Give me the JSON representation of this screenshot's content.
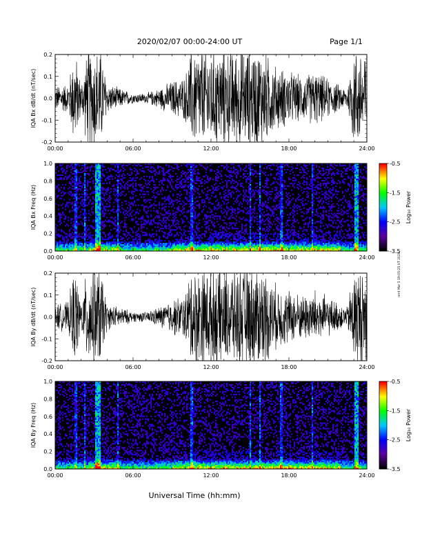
{
  "header": {
    "date_range": "2020/02/07  00:00-24:00 UT",
    "page": "Page 1/1"
  },
  "side_note": "nmt Mar 5 19:05:25 UT 2020",
  "x_axis_label": "Universal Time (hh:mm)",
  "x_tick_labels": [
    "00:00",
    "06:00",
    "12:00",
    "18:00",
    "24:00"
  ],
  "chart_data": [
    {
      "type": "line",
      "ylabel": "IQA Bx dB/dt (nT/sec)",
      "xlim": [
        0,
        24
      ],
      "ylim": [
        -0.2,
        0.2
      ],
      "y_tick_labels": [
        "-0.2",
        "-0.1",
        "0.0",
        "0.1",
        "0.2"
      ],
      "series": [
        {
          "x": [
            0,
            1,
            1.5,
            2,
            2.5,
            3,
            3.5,
            4,
            5,
            6,
            7,
            8,
            9,
            10,
            10.5,
            11,
            12,
            13,
            13.5,
            14,
            15,
            16,
            17,
            18,
            19,
            20,
            21,
            22,
            22.5,
            23,
            23.5,
            24
          ],
          "amplitude": [
            0.05,
            0.06,
            0.2,
            0.06,
            0.2,
            0.2,
            0.2,
            0.06,
            0.04,
            0.02,
            0.02,
            0.04,
            0.07,
            0.09,
            0.2,
            0.2,
            0.2,
            0.2,
            0.2,
            0.2,
            0.2,
            0.2,
            0.13,
            0.11,
            0.09,
            0.11,
            0.08,
            0.05,
            0.04,
            0.2,
            0.2,
            0.2
          ]
        }
      ]
    },
    {
      "type": "heatmap",
      "ylabel": "IQA Bx Freq (Hz)",
      "xlim": [
        0,
        24
      ],
      "ylim": [
        0,
        1.0
      ],
      "y_tick_labels": [
        "0.0",
        "0.2",
        "0.4",
        "0.6",
        "0.8",
        "1.0"
      ],
      "colorbar": {
        "label": "Log₁₀ Power",
        "range": [
          -3.5,
          -0.5
        ],
        "tick_labels": [
          "-0.5",
          "-1.5",
          "-2.5",
          "-3.5"
        ],
        "colors": [
          "#000000",
          "#5a00a0",
          "#0000ff",
          "#00c8ff",
          "#00ff00",
          "#ffff00",
          "#ff0000"
        ]
      },
      "hot_bands_hours": [
        3.3,
        23.2
      ]
    },
    {
      "type": "line",
      "ylabel": "IQA By dB/dt (nT/sec)",
      "xlim": [
        0,
        24
      ],
      "ylim": [
        -0.2,
        0.2
      ],
      "y_tick_labels": [
        "-0.2",
        "-0.1",
        "0.0",
        "0.1",
        "0.2"
      ],
      "series": [
        {
          "x": [
            0,
            1,
            1.5,
            2,
            2.5,
            3,
            3.5,
            4,
            5,
            6,
            7,
            8,
            9,
            10,
            10.5,
            11,
            12,
            13,
            13.5,
            14,
            15,
            16,
            17,
            18,
            19,
            20,
            21,
            22,
            22.5,
            23,
            23.5,
            24
          ],
          "amplitude": [
            0.05,
            0.06,
            0.2,
            0.06,
            0.2,
            0.2,
            0.2,
            0.05,
            0.04,
            0.02,
            0.02,
            0.04,
            0.07,
            0.09,
            0.2,
            0.2,
            0.2,
            0.2,
            0.2,
            0.2,
            0.2,
            0.2,
            0.13,
            0.11,
            0.09,
            0.11,
            0.08,
            0.05,
            0.04,
            0.2,
            0.2,
            0.2
          ]
        }
      ]
    },
    {
      "type": "heatmap",
      "ylabel": "IQA By Freq (Hz)",
      "xlim": [
        0,
        24
      ],
      "ylim": [
        0,
        1.0
      ],
      "y_tick_labels": [
        "0.0",
        "0.2",
        "0.4",
        "0.6",
        "0.8",
        "1.0"
      ],
      "colorbar": {
        "label": "Log₁₀ Power",
        "range": [
          -3.5,
          -0.5
        ],
        "tick_labels": [
          "-0.5",
          "-1.5",
          "-2.5",
          "-3.5"
        ],
        "colors": [
          "#000000",
          "#5a00a0",
          "#0000ff",
          "#00c8ff",
          "#00ff00",
          "#ffff00",
          "#ff0000"
        ]
      },
      "hot_bands_hours": [
        3.3,
        23.2
      ]
    }
  ]
}
